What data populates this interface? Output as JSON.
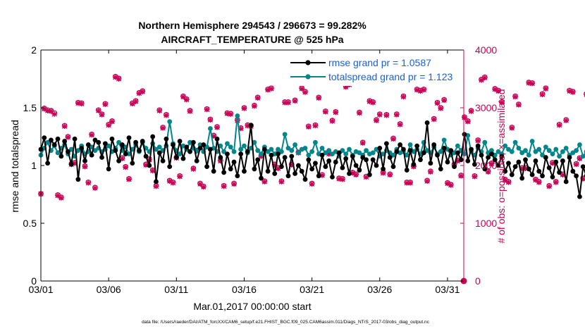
{
  "chart_data": {
    "type": "line",
    "title": "Northern Hemisphere 294543 / 296673 = 99.282%",
    "subtitle": "AIRCRAFT_TEMPERATURE @ 525 hPa",
    "xlabel": "Mar.01,2017 00:00:00 start",
    "ylabel": "rmse and totalspread",
    "y2label": "# of obs: o=possible; ×=assimilated",
    "footer": "data file: /Users/raeder/DAI/ATM_forcXX/CAM6_setup/f.e21.FHIST_BGC.f09_025.CAM6assim.011/Diags_NTrS_2017-03/obs_diag_output.nc",
    "xlim": [
      1,
      32.2
    ],
    "ylim": [
      0,
      2
    ],
    "y2lim": [
      0,
      4000
    ],
    "x_ticks": [
      1,
      6,
      11,
      16,
      21,
      26,
      31
    ],
    "x_tick_labels": [
      "03/01",
      "03/06",
      "03/11",
      "03/16",
      "03/21",
      "03/26",
      "03/31"
    ],
    "y_ticks": [
      "0",
      "0.5",
      "1",
      "1.5",
      "2"
    ],
    "y2_ticks": [
      "0",
      "1000",
      "2000",
      "3000",
      "4000"
    ],
    "legend_position": "top-right",
    "colors": {
      "rmse": "#000000",
      "spread": "#00868b",
      "obs": "#cc0055",
      "legend_text": "#1a5fe0"
    },
    "series": [
      {
        "name": "rmse grand pr = 1.0587",
        "values": [
          1.14,
          1.24,
          1.02,
          1.22,
          1.18,
          1.23,
          1.08,
          1.21,
          1.12,
          1.01,
          1.23,
          0.88,
          1.15,
          1.04,
          1.18,
          1.09,
          1.22,
          1.2,
          1.07,
          1.19,
          0.97,
          1.23,
          1.13,
          1.04,
          1.18,
          1.1,
          1.24,
          1.02,
          1.2,
          1.13,
          1.21,
          1.08,
          1.0,
          1.25,
          0.86,
          1.11,
          1.04,
          1.23,
          0.99,
          1.18,
          1.07,
          1.21,
          1.06,
          1.16,
          1.12,
          1.2,
          1.04,
          1.15,
          1.18,
          0.99,
          1.14,
          0.95,
          1.23,
          1.07,
          0.94,
          1.1,
          0.97,
          1.03,
          0.91,
          1.1,
          0.95,
          1.12,
          1.35,
          0.97,
          1.05,
          0.89,
          1.14,
          0.95,
          1.09,
          0.93,
          1.1,
          0.99,
          1.07,
          0.91,
          1.08,
          0.93,
          1.0,
          0.95,
          0.88,
          1.05,
          0.97,
          1.02,
          0.91,
          1.09,
          0.99,
          1.04,
          0.9,
          1.03,
          1.11,
          0.98,
          1.06,
          0.93,
          1.08,
          1.0,
          0.96,
          1.07,
          1.05,
          0.92,
          1.05,
          1.0,
          1.15,
          0.97,
          1.19,
          1.07,
          0.99,
          1.12,
          1.18,
          1.14,
          0.96,
          1.13,
          1.01,
          1.17,
          1.05,
          1.11,
          1.37,
          1.02,
          1.18,
          1.09,
          0.97,
          1.15,
          1.03,
          1.13,
          0.99,
          1.11,
          1.05,
          1.27,
          1.04,
          1.14,
          1.01,
          1.17,
          1.09,
          0.97,
          1.07,
          1.1,
          1.05,
          1.0,
          1.08,
          0.95,
          1.02,
          0.92,
          0.99,
          1.03,
          0.89,
          1.05,
          0.97,
          0.92,
          1.04,
          0.95,
          0.91,
          1.07,
          0.98,
          0.9,
          1.03,
          0.94,
          1.04,
          0.86,
          1.07,
          0.95,
          0.91,
          0.73,
          0.99,
          0.91,
          0.9,
          0.87,
          1.0,
          1.35,
          1.04,
          1.09,
          0.91,
          0.83
        ],
        "color": "#000000",
        "marker": "hexagon-dot"
      },
      {
        "name": "totalspread grand pr = 1.123",
        "values": [
          1.09,
          1.15,
          1.2,
          1.13,
          1.17,
          1.11,
          1.15,
          1.18,
          1.1,
          1.14,
          1.08,
          1.13,
          1.17,
          1.1,
          1.12,
          1.16,
          1.13,
          1.15,
          1.12,
          1.14,
          1.17,
          1.12,
          1.15,
          1.2,
          1.13,
          1.16,
          1.1,
          1.14,
          1.18,
          1.12,
          1.2,
          1.15,
          1.12,
          1.19,
          1.14,
          1.16,
          1.13,
          1.17,
          1.38,
          1.19,
          1.13,
          1.1,
          1.17,
          1.14,
          1.2,
          1.15,
          1.13,
          1.18,
          1.12,
          1.16,
          1.32,
          1.15,
          1.12,
          1.17,
          1.12,
          1.19,
          1.16,
          1.12,
          1.43,
          1.14,
          1.17,
          1.11,
          1.15,
          1.2,
          1.13,
          1.1,
          1.16,
          1.12,
          1.14,
          1.1,
          1.14,
          1.12,
          1.27,
          1.15,
          1.13,
          1.18,
          1.11,
          1.14,
          1.15,
          1.09,
          1.12,
          1.2,
          1.1,
          1.15,
          1.11,
          1.13,
          1.1,
          1.12,
          1.08,
          1.13,
          1.1,
          1.14,
          1.09,
          1.12,
          1.11,
          1.09,
          1.13,
          1.1,
          1.11,
          1.14,
          1.08,
          1.1,
          1.13,
          1.11,
          1.09,
          1.14,
          1.11,
          1.12,
          1.09,
          1.18,
          1.12,
          1.14,
          1.1,
          1.2,
          1.13,
          1.11,
          1.16,
          1.1,
          1.12,
          1.22,
          1.14,
          1.09,
          1.11,
          1.17,
          1.13,
          1.1,
          1.26,
          1.12,
          1.09,
          1.15,
          1.12,
          1.2,
          1.11,
          1.13,
          1.09,
          1.12,
          1.1,
          1.17,
          1.14,
          1.12,
          1.2,
          1.15,
          1.11,
          1.13,
          1.09,
          1.21,
          1.12,
          1.14,
          1.09,
          1.16,
          1.13,
          1.1,
          1.14,
          1.08,
          1.12,
          1.15,
          1.09,
          1.11,
          1.13,
          1.18,
          1.08,
          1.12,
          1.1,
          1.09,
          1.11,
          1.1,
          1.14,
          1.08,
          1.12,
          1.1,
          1.24,
          1.07,
          1.1,
          1.08,
          1.05
        ],
        "color": "#00868b",
        "marker": "hexagon"
      },
      {
        "name": "# of obs possible (o)",
        "axis": "right",
        "values": [
          1510,
          2990,
          2960,
          2950,
          2910,
          1490,
          1450,
          2690,
          2500,
          2030,
          2050,
          3090,
          3080,
          1990,
          1710,
          2540,
          1620,
          2960,
          2890,
          3070,
          2710,
          2770,
          3540,
          3510,
          2130,
          1980,
          1770,
          3080,
          3120,
          3260,
          3290,
          2020,
          2110,
          1920,
          1650,
          2960,
          2660,
          2880,
          1740,
          1710,
          2140,
          1820,
          3200,
          3150,
          2950,
          1950,
          2260,
          1690,
          1640,
          2980,
          2800,
          2520,
          2670,
          2090,
          1650,
          2910,
          2900,
          1690,
          2790,
          2650,
          3000,
          2700,
          2690,
          3040,
          3180,
          2170,
          1730,
          3320,
          3340,
          2020,
          1960,
          1730,
          3100,
          3100,
          2020,
          3130,
          2230,
          3340,
          3280,
          2680,
          1690,
          2700,
          3180,
          1840,
          2940,
          2210,
          2780,
          2930,
          1780,
          1770,
          3370,
          3410,
          1880,
          1850,
          2920,
          2400,
          1810,
          3120,
          3100,
          2790,
          2890,
          1880,
          2880,
          1850,
          2470,
          2890,
          2720,
          3200,
          1710,
          1710,
          1990,
          3320,
          3300,
          3320,
          1740,
          1900,
          2810,
          3090,
          3000,
          3140,
          1700,
          1670,
          2020,
          2090,
          1830,
          2840,
          2770,
          2950,
          1820,
          2440,
          3490,
          3530,
          1900,
          2040,
          3330,
          3300,
          3100,
          1760,
          1720,
          2660,
          3200,
          3060,
          1960,
          1960,
          3440,
          3430,
          1760,
          1720,
          3240,
          3340,
          1650,
          2050,
          1720,
          2710,
          1850,
          2790,
          3300,
          3280,
          2030,
          2130,
          1780,
          3240,
          3230,
          1550,
          3220,
          3200,
          1580,
          1610,
          3360,
          1620,
          3320,
          3300,
          1440,
          3280,
          3300,
          1620,
          3340,
          3350
        ],
        "color": "#cc0055",
        "marker": "o"
      },
      {
        "name": "# of obs assimilated (×)",
        "axis": "right",
        "values": [
          1510,
          2980,
          2950,
          2940,
          2890,
          1480,
          1440,
          2680,
          2490,
          2020,
          2040,
          3080,
          3070,
          1980,
          1700,
          2530,
          1610,
          2950,
          2880,
          3060,
          2700,
          2760,
          3530,
          3500,
          2120,
          1970,
          1760,
          3070,
          3110,
          3250,
          3280,
          2010,
          2100,
          1910,
          1640,
          2950,
          2650,
          2870,
          1730,
          1700,
          2130,
          1810,
          3190,
          3140,
          2940,
          1940,
          2250,
          1680,
          1630,
          2970,
          2790,
          2510,
          2660,
          2080,
          1640,
          2900,
          2890,
          1680,
          2780,
          2640,
          2990,
          2690,
          2680,
          3030,
          3170,
          2160,
          1720,
          3310,
          3330,
          2010,
          1950,
          1720,
          3090,
          3090,
          2010,
          3120,
          2220,
          3330,
          3270,
          2670,
          1680,
          2690,
          3170,
          1830,
          2930,
          2200,
          2770,
          2920,
          1770,
          1760,
          3360,
          3400,
          1870,
          1840,
          2910,
          2390,
          1800,
          3110,
          3090,
          2780,
          2880,
          1870,
          2870,
          1840,
          2460,
          2880,
          2710,
          3190,
          1700,
          1700,
          1980,
          3310,
          3290,
          3310,
          1730,
          1890,
          2800,
          3080,
          2990,
          3130,
          1690,
          1660,
          2010,
          2080,
          1820,
          2830,
          2760,
          2940,
          1810,
          2430,
          3480,
          3520,
          1890,
          2030,
          3320,
          3290,
          3090,
          1750,
          1710,
          2650,
          3190,
          3050,
          1950,
          1950,
          3430,
          3420,
          1750,
          1710,
          3230,
          3330,
          1640,
          2040,
          1710,
          2700,
          1840,
          2780,
          3290,
          3270,
          2020,
          2120,
          1770,
          3230,
          3220,
          1540,
          3210,
          3190,
          1570,
          1600,
          3350,
          1610,
          3310,
          3290,
          1430,
          3270,
          3290,
          1610,
          3330,
          3340
        ],
        "color": "#cc0055",
        "marker": "x"
      }
    ],
    "final_obs_possible": 0,
    "final_obs_assimilated": 0
  }
}
